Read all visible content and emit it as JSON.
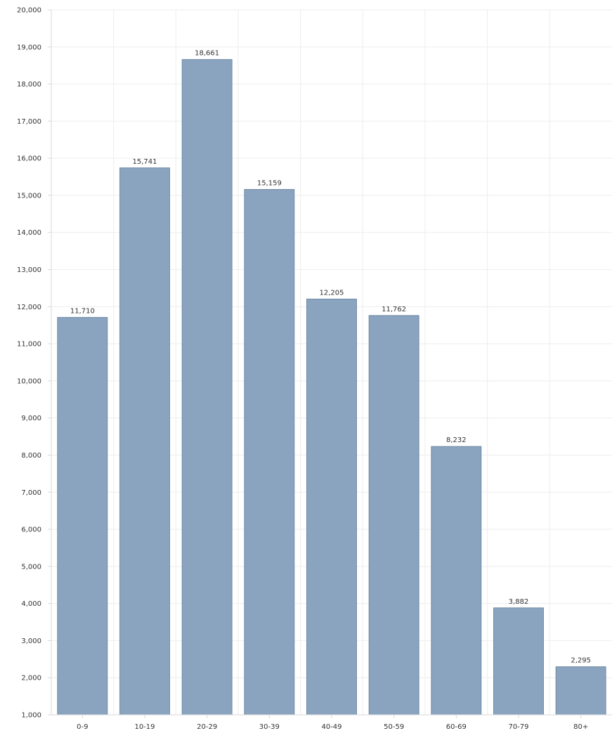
{
  "chart_data": {
    "type": "bar",
    "categories": [
      "0-9",
      "10-19",
      "20-29",
      "30-39",
      "40-49",
      "50-59",
      "60-69",
      "70-79",
      "80+"
    ],
    "values": [
      11710,
      15741,
      18661,
      15159,
      12205,
      11762,
      8232,
      3882,
      2295
    ],
    "value_labels": [
      "11,710",
      "15,741",
      "18,661",
      "15,159",
      "12,205",
      "11,762",
      "8,232",
      "3,882",
      "2,295"
    ],
    "y_ticks": [
      "1,000",
      "2,000",
      "3,000",
      "4,000",
      "5,000",
      "6,000",
      "7,000",
      "8,000",
      "9,000",
      "10,000",
      "11,000",
      "12,000",
      "13,000",
      "14,000",
      "15,000",
      "16,000",
      "17,000",
      "18,000",
      "19,000",
      "20,000"
    ],
    "ylim": [
      1000,
      20000
    ],
    "y_step": 1000,
    "grid": true,
    "legend": "none",
    "bar_color": "#8aa4bf",
    "bar_border_color": "#6f8aa7",
    "title": "",
    "xlabel": "",
    "ylabel": ""
  }
}
